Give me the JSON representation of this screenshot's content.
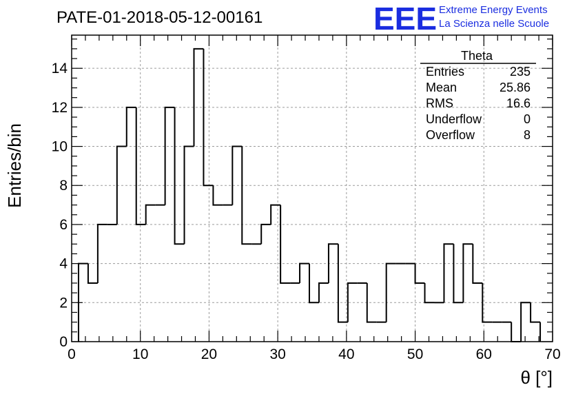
{
  "chart_data": {
    "type": "bar",
    "title": "PATE-01-2018-05-12-00161",
    "xlabel": "θ [°]",
    "ylabel": "Entries/bin",
    "xlim": [
      0,
      70
    ],
    "ylim": [
      0,
      15.7
    ],
    "x_ticks": [
      0,
      10,
      20,
      30,
      40,
      50,
      60,
      70
    ],
    "y_ticks": [
      0,
      2,
      4,
      6,
      8,
      10,
      12,
      14
    ],
    "grid": true,
    "bin_width": 1.4,
    "bin_edges_start": 1.0,
    "values": [
      4,
      3,
      6,
      6,
      10,
      12,
      6,
      7,
      7,
      12,
      5,
      10,
      15,
      8,
      7,
      7,
      10,
      5,
      5,
      6,
      7,
      3,
      3,
      4,
      2,
      3,
      5,
      1,
      3,
      3,
      1,
      1,
      4,
      4,
      4,
      3,
      2,
      2,
      5,
      2,
      5,
      3,
      1,
      1,
      1,
      0,
      2,
      1
    ],
    "stats_box": {
      "title": "Theta",
      "rows": [
        {
          "label": "Entries",
          "value": "235"
        },
        {
          "label": "Mean",
          "value": "25.86"
        },
        {
          "label": "RMS",
          "value": "16.6"
        },
        {
          "label": "Underflow",
          "value": "0"
        },
        {
          "label": "Overflow",
          "value": "8"
        }
      ]
    }
  },
  "logo": {
    "mark": "EEE",
    "line1": "Extreme Energy Events",
    "line2": "La Scienza nelle Scuole",
    "color": "#1a2de0"
  }
}
